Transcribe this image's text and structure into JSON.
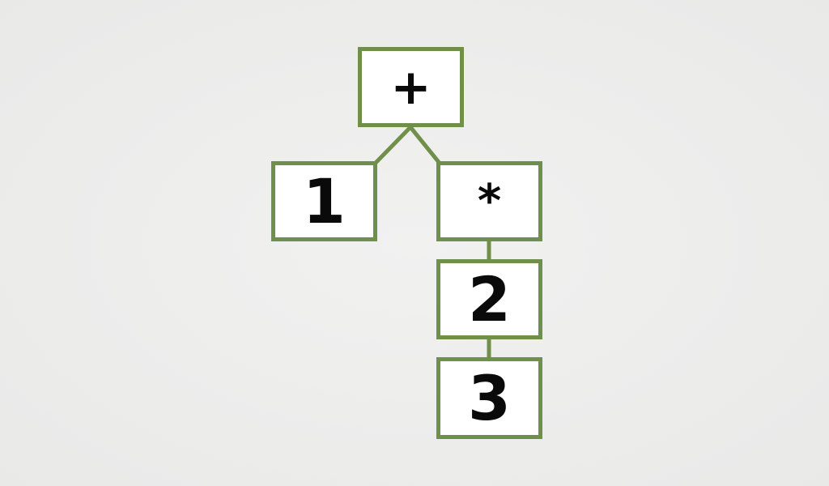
{
  "diagram": {
    "type": "expression-tree",
    "nodes": [
      {
        "id": "root",
        "label": "+"
      },
      {
        "id": "one",
        "label": "1"
      },
      {
        "id": "mul",
        "label": "*"
      },
      {
        "id": "two",
        "label": "2"
      },
      {
        "id": "three",
        "label": "3"
      }
    ],
    "edges": [
      {
        "from": "root",
        "to": "one"
      },
      {
        "from": "root",
        "to": "mul"
      },
      {
        "from": "mul",
        "to": "two"
      },
      {
        "from": "two",
        "to": "three"
      }
    ]
  },
  "colors": {
    "node_border": "#6f8f4a",
    "edge": "#6f8f4a",
    "node_fill": "#ffffff",
    "text": "#0a0a0a",
    "background": "#ececeb"
  }
}
